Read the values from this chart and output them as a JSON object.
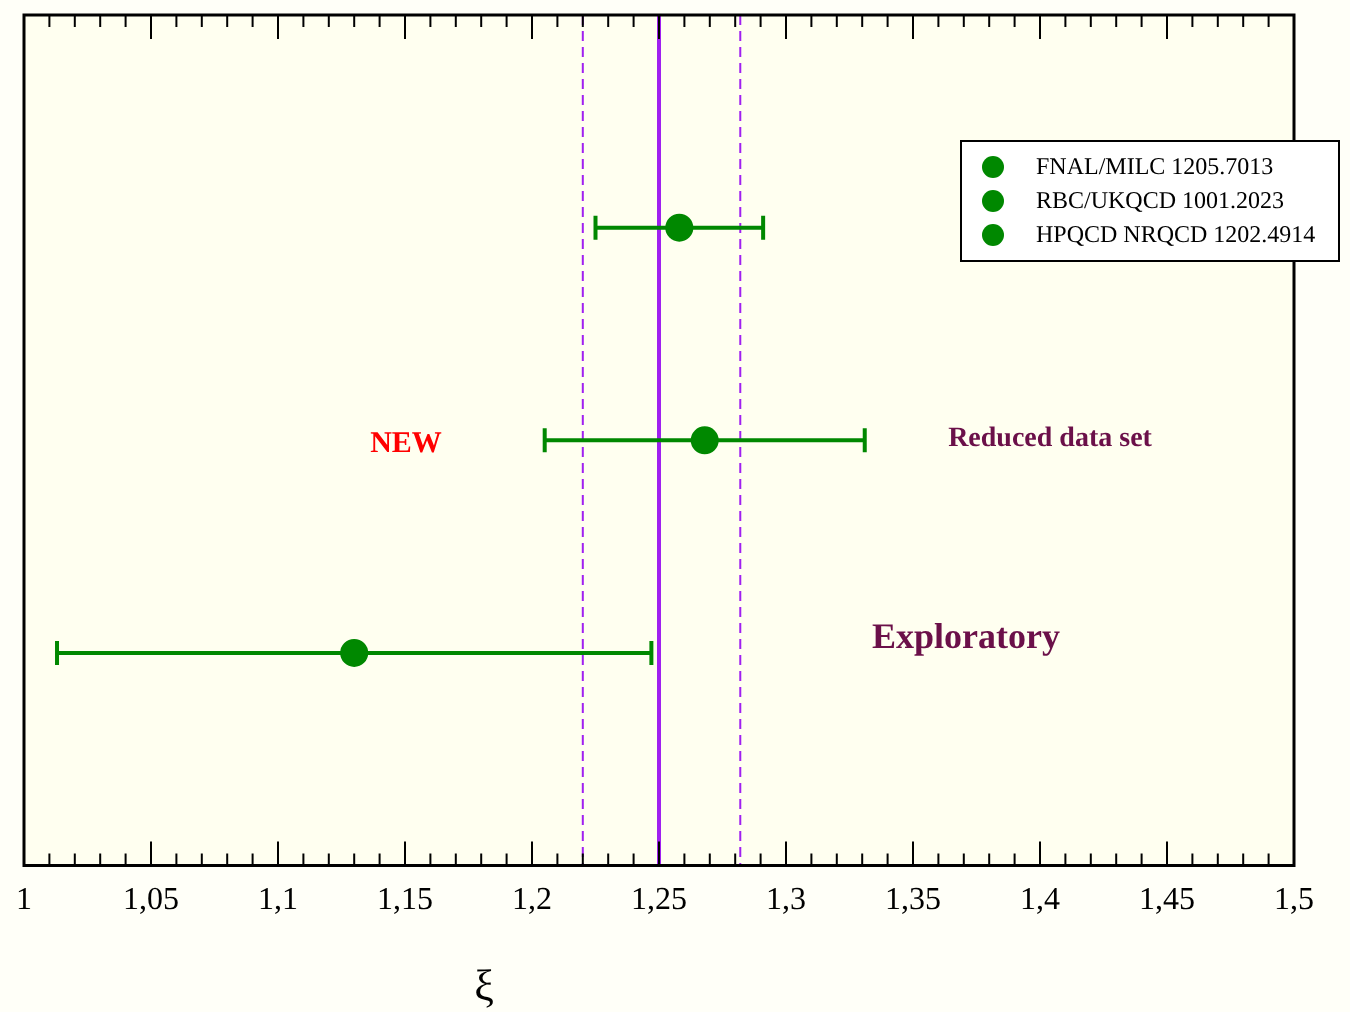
{
  "chart_data": {
    "type": "scatter",
    "orientation": "horizontal",
    "xlabel": "ξ",
    "categories": [
      null,
      null,
      null
    ],
    "series": [
      {
        "name": "FNAL/MILC 1205.7013",
        "color": "#008800",
        "values": [
          null,
          1.268,
          null
        ],
        "errors": [
          null,
          [
            1.205,
            1.331
          ],
          null
        ]
      },
      {
        "name": "RBC/UKQCD 1001.2023",
        "color": "#008800",
        "values": [
          null,
          null,
          1.13
        ],
        "errors": [
          null,
          null,
          [
            1.013,
            1.247
          ]
        ]
      },
      {
        "name": "HPQCD NRQCD 1202.4914",
        "color": "#008800",
        "values": [
          1.258,
          null,
          null
        ],
        "errors": [
          [
            1.225,
            1.291
          ],
          null,
          null
        ]
      }
    ],
    "xlim": [
      1,
      1.5
    ],
    "xticks": [
      1,
      {
        "value": 1.01,
        "label": null
      },
      {
        "value": 1.02,
        "label": null
      },
      {
        "value": 1.03,
        "label": null
      },
      {
        "value": 1.04,
        "label": null
      },
      {
        "value": 1.05,
        "label": "1,05"
      },
      {
        "value": 1.06,
        "label": null
      },
      {
        "value": 1.07,
        "label": null
      },
      {
        "value": 1.08,
        "label": null
      },
      {
        "value": 1.09,
        "label": null
      },
      {
        "value": 1.1,
        "label": "1,1"
      },
      {
        "value": 1.11,
        "label": null
      },
      {
        "value": 1.12,
        "label": null
      },
      {
        "value": 1.13,
        "label": null
      },
      {
        "value": 1.14,
        "label": null
      },
      {
        "value": 1.15,
        "label": "1,15"
      },
      {
        "value": 1.16,
        "label": null
      },
      {
        "value": 1.17,
        "label": null
      },
      {
        "value": 1.18,
        "label": null
      },
      {
        "value": 1.19,
        "label": null
      },
      {
        "value": 1.2,
        "label": "1,2"
      },
      {
        "value": 1.21,
        "label": null
      },
      {
        "value": 1.22,
        "label": null
      },
      {
        "value": 1.23,
        "label": null
      },
      {
        "value": 1.24,
        "label": null
      },
      {
        "value": 1.25,
        "label": "1,25"
      },
      {
        "value": 1.26,
        "label": null
      },
      {
        "value": 1.27,
        "label": null
      },
      {
        "value": 1.28,
        "label": null
      },
      {
        "value": 1.29,
        "label": null
      },
      {
        "value": 1.3,
        "label": "1,3"
      },
      {
        "value": 1.31,
        "label": null
      },
      {
        "value": 1.32,
        "label": null
      },
      {
        "value": 1.33,
        "label": null
      },
      {
        "value": 1.34,
        "label": null
      },
      {
        "value": 1.35,
        "label": "1,35"
      },
      {
        "value": 1.36,
        "label": null
      },
      {
        "value": 1.37,
        "label": null
      },
      {
        "value": 1.38,
        "label": null
      },
      {
        "value": 1.39,
        "label": null
      },
      {
        "value": 1.4,
        "label": "1,4"
      },
      {
        "value": 1.41,
        "label": null
      },
      {
        "value": 1.42,
        "label": null
      },
      {
        "value": 1.43,
        "label": null
      },
      {
        "value": 1.44,
        "label": null
      },
      {
        "value": 1.45,
        "label": "1,45"
      },
      {
        "value": 1.46,
        "label": null
      },
      {
        "value": 1.47,
        "label": null
      },
      {
        "value": 1.48,
        "label": null
      },
      {
        "value": 1.49,
        "label": null
      },
      {
        "value": 1.5,
        "label": "1,5"
      }
    ],
    "tick_labels": "x",
    "ref_lines": [
      {
        "axis": "x",
        "value": 1.25,
        "color": "#a020f0",
        "line_style": "solid"
      },
      {
        "axis": "x",
        "value": 1.22,
        "color": "#a020f0",
        "line_style": "dashed"
      },
      {
        "axis": "x",
        "value": 1.282,
        "color": "#a020f0",
        "line_style": "dashed"
      }
    ],
    "annotations": [
      "NEW",
      "Reduced data set",
      "Exploratory"
    ],
    "legend": "top right",
    "marker": "circle",
    "grid": false
  }
}
